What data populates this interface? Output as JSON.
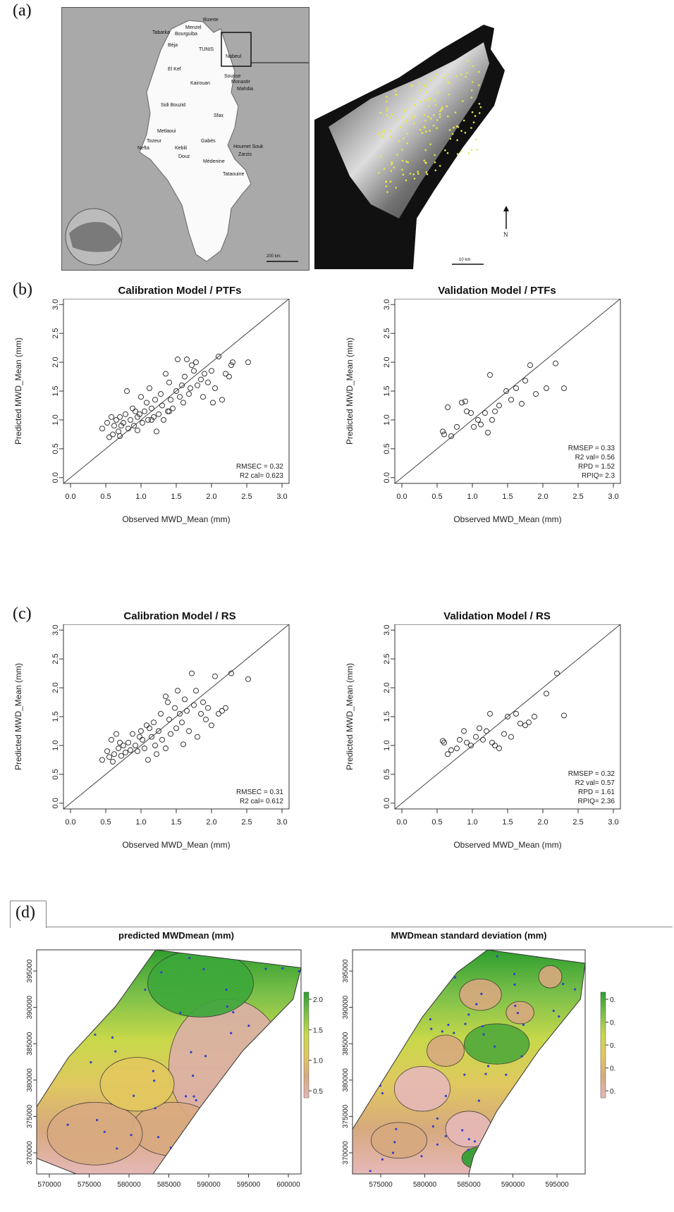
{
  "panels": {
    "a": {
      "letter": "(a)"
    },
    "b": {
      "letter": "(b)"
    },
    "c": {
      "letter": "(c)"
    },
    "d": {
      "letter": "(d)"
    }
  },
  "map": {
    "cities": [
      "Bizerte",
      "Menzel",
      "Tabarka",
      "Bourguiba",
      "Béja",
      "TUNIS",
      "Nabeul",
      "El Kef",
      "Kairouan",
      "Sousse",
      "Monastir",
      "Mahdia",
      "Sidi Bouzid",
      "Sfax",
      "Metlaoui",
      "Tozeur",
      "Nefta",
      "Kebili",
      "Gabès",
      "Houmet Souk",
      "Douz",
      "Zarzis",
      "Médenine",
      "Tataouine"
    ],
    "scale": "200 km"
  },
  "dem": {
    "north": "N",
    "scale": "10 km",
    "point_color": "#e8e84a"
  },
  "chart_data": [
    {
      "type": "scatter",
      "title": "Calibration Model / PTFs",
      "xlabel": "Observed  MWD_Mean  (mm)",
      "ylabel": "Predicted  MWD_Mean  (mm)",
      "xlim": [
        0,
        3
      ],
      "ylim": [
        0,
        3
      ],
      "xticks": [
        "0.0",
        "0.5",
        "1.0",
        "1.5",
        "2.0",
        "2.5",
        "3.0"
      ],
      "yticks": [
        "0.0",
        "0.5",
        "1.0",
        "1.5",
        "2.0",
        "2.5",
        "3.0"
      ],
      "stats": [
        "RMSEC = 0.32",
        "R2 cal= 0.623"
      ],
      "reference_line": "1:1",
      "points": [
        [
          0.45,
          0.85
        ],
        [
          0.52,
          0.95
        ],
        [
          0.55,
          0.7
        ],
        [
          0.58,
          1.05
        ],
        [
          0.6,
          0.75
        ],
        [
          0.62,
          0.9
        ],
        [
          0.65,
          1.0
        ],
        [
          0.68,
          0.8
        ],
        [
          0.7,
          1.05
        ],
        [
          0.72,
          0.9
        ],
        [
          0.75,
          0.95
        ],
        [
          0.78,
          1.1
        ],
        [
          0.8,
          1.5
        ],
        [
          0.82,
          0.85
        ],
        [
          0.85,
          1.0
        ],
        [
          0.88,
          1.2
        ],
        [
          0.9,
          0.9
        ],
        [
          0.92,
          1.15
        ],
        [
          0.95,
          1.05
        ],
        [
          0.98,
          1.1
        ],
        [
          1.0,
          1.4
        ],
        [
          1.02,
          0.95
        ],
        [
          1.05,
          1.15
        ],
        [
          1.08,
          1.3
        ],
        [
          1.1,
          1.0
        ],
        [
          1.12,
          1.55
        ],
        [
          1.15,
          1.2
        ],
        [
          1.18,
          1.05
        ],
        [
          1.2,
          1.35
        ],
        [
          1.22,
          0.8
        ],
        [
          1.25,
          1.1
        ],
        [
          1.28,
          1.45
        ],
        [
          1.3,
          1.25
        ],
        [
          1.32,
          1.0
        ],
        [
          1.35,
          1.8
        ],
        [
          1.38,
          1.15
        ],
        [
          1.4,
          1.65
        ],
        [
          1.42,
          1.35
        ],
        [
          1.45,
          1.2
        ],
        [
          1.5,
          1.5
        ],
        [
          1.52,
          2.05
        ],
        [
          1.55,
          1.4
        ],
        [
          1.58,
          1.6
        ],
        [
          1.6,
          1.3
        ],
        [
          1.62,
          1.75
        ],
        [
          1.65,
          2.05
        ],
        [
          1.68,
          1.45
        ],
        [
          1.7,
          1.55
        ],
        [
          1.72,
          1.95
        ],
        [
          1.75,
          1.85
        ],
        [
          1.78,
          2.0
        ],
        [
          1.8,
          1.6
        ],
        [
          1.85,
          1.7
        ],
        [
          1.88,
          1.4
        ],
        [
          1.9,
          1.8
        ],
        [
          1.95,
          1.65
        ],
        [
          2.0,
          1.85
        ],
        [
          2.02,
          1.3
        ],
        [
          2.05,
          1.55
        ],
        [
          2.1,
          2.1
        ],
        [
          2.15,
          1.35
        ],
        [
          2.2,
          1.8
        ],
        [
          2.25,
          1.75
        ],
        [
          2.28,
          1.95
        ],
        [
          2.3,
          2.0
        ],
        [
          2.52,
          2.0
        ],
        [
          1.4,
          1.15
        ],
        [
          1.15,
          1.0
        ],
        [
          0.95,
          0.82
        ],
        [
          0.7,
          0.72
        ]
      ]
    },
    {
      "type": "scatter",
      "title": "Validation Model / PTFs",
      "xlabel": "Observed  MWD_Mean  (mm)",
      "ylabel": "Predicted  MWD_Mean  (mm)",
      "xlim": [
        0,
        3
      ],
      "ylim": [
        0,
        3
      ],
      "xticks": [
        "0.0",
        "0.5",
        "1.0",
        "1.5",
        "2.0",
        "2.5",
        "3.0"
      ],
      "yticks": [
        "0.0",
        "0.5",
        "1.0",
        "1.5",
        "2.0",
        "2.5",
        "3.0"
      ],
      "stats": [
        "RMSEP = 0.33",
        "R2 val= 0.56",
        "RPD = 1.52",
        "RPIQ= 2.3"
      ],
      "reference_line": "1:1",
      "points": [
        [
          0.58,
          0.8
        ],
        [
          0.6,
          0.75
        ],
        [
          0.65,
          1.22
        ],
        [
          0.7,
          0.72
        ],
        [
          0.78,
          0.88
        ],
        [
          0.85,
          1.3
        ],
        [
          0.9,
          1.32
        ],
        [
          0.92,
          1.15
        ],
        [
          0.98,
          1.12
        ],
        [
          1.02,
          0.88
        ],
        [
          1.08,
          1.0
        ],
        [
          1.12,
          0.92
        ],
        [
          1.18,
          1.12
        ],
        [
          1.22,
          0.78
        ],
        [
          1.25,
          1.78
        ],
        [
          1.28,
          1.0
        ],
        [
          1.32,
          1.15
        ],
        [
          1.38,
          1.25
        ],
        [
          1.48,
          1.5
        ],
        [
          1.55,
          1.35
        ],
        [
          1.62,
          1.55
        ],
        [
          1.7,
          1.28
        ],
        [
          1.75,
          1.68
        ],
        [
          1.82,
          1.95
        ],
        [
          1.9,
          1.45
        ],
        [
          2.05,
          1.55
        ],
        [
          2.18,
          1.98
        ],
        [
          2.3,
          1.55
        ]
      ]
    },
    {
      "type": "scatter",
      "title": "Calibration Model / RS",
      "xlabel": "Observed   MWD_Mean  (mm)",
      "ylabel": "Predicted MWD_Mean  (mm)",
      "xlim": [
        0,
        3
      ],
      "ylim": [
        0,
        3
      ],
      "xticks": [
        "0.0",
        "0.5",
        "1.0",
        "1.5",
        "2.0",
        "2.5",
        "3.0"
      ],
      "yticks": [
        "0.0",
        "0.5",
        "1.0",
        "1.5",
        "2.0",
        "2.5",
        "3.0"
      ],
      "stats": [
        "RMSEC = 0.31",
        "R2 cal= 0.612"
      ],
      "reference_line": "1:1",
      "points": [
        [
          0.45,
          0.75
        ],
        [
          0.52,
          0.9
        ],
        [
          0.55,
          0.8
        ],
        [
          0.58,
          1.1
        ],
        [
          0.6,
          0.72
        ],
        [
          0.62,
          0.85
        ],
        [
          0.65,
          1.2
        ],
        [
          0.68,
          0.95
        ],
        [
          0.72,
          0.82
        ],
        [
          0.75,
          1.0
        ],
        [
          0.78,
          0.88
        ],
        [
          0.82,
          1.05
        ],
        [
          0.85,
          0.92
        ],
        [
          0.88,
          1.2
        ],
        [
          0.92,
          1.0
        ],
        [
          0.95,
          0.9
        ],
        [
          1.0,
          1.25
        ],
        [
          1.02,
          1.1
        ],
        [
          1.05,
          0.95
        ],
        [
          1.08,
          1.35
        ],
        [
          1.1,
          0.75
        ],
        [
          1.15,
          1.15
        ],
        [
          1.18,
          1.4
        ],
        [
          1.2,
          1.0
        ],
        [
          1.22,
          0.85
        ],
        [
          1.25,
          1.25
        ],
        [
          1.28,
          1.55
        ],
        [
          1.3,
          1.1
        ],
        [
          1.35,
          0.95
        ],
        [
          1.38,
          1.75
        ],
        [
          1.4,
          1.45
        ],
        [
          1.42,
          1.2
        ],
        [
          1.48,
          1.65
        ],
        [
          1.5,
          1.3
        ],
        [
          1.52,
          1.95
        ],
        [
          1.55,
          1.55
        ],
        [
          1.58,
          1.4
        ],
        [
          1.62,
          1.8
        ],
        [
          1.65,
          1.6
        ],
        [
          1.68,
          1.25
        ],
        [
          1.72,
          2.25
        ],
        [
          1.75,
          1.7
        ],
        [
          1.78,
          1.95
        ],
        [
          1.8,
          1.15
        ],
        [
          1.85,
          1.55
        ],
        [
          1.88,
          1.75
        ],
        [
          1.92,
          1.45
        ],
        [
          1.95,
          1.65
        ],
        [
          2.0,
          1.35
        ],
        [
          2.05,
          2.2
        ],
        [
          2.1,
          1.55
        ],
        [
          2.15,
          1.6
        ],
        [
          2.2,
          1.65
        ],
        [
          2.28,
          2.25
        ],
        [
          2.52,
          2.15
        ],
        [
          1.35,
          1.85
        ],
        [
          1.12,
          1.3
        ],
        [
          0.98,
          1.15
        ],
        [
          0.7,
          1.05
        ],
        [
          1.6,
          1.02
        ]
      ]
    },
    {
      "type": "scatter",
      "title": "Validation Model / RS",
      "xlabel": "Observed  MWD_Mean  (mm)",
      "ylabel": "Predicted  MWD_Mean  (mm)",
      "xlim": [
        0,
        3
      ],
      "ylim": [
        0,
        3
      ],
      "xticks": [
        "0.0",
        "0.5",
        "1.0",
        "1.5",
        "2.0",
        "2.5",
        "3.0"
      ],
      "yticks": [
        "0.0",
        "0.5",
        "1.0",
        "1.5",
        "2.0",
        "2.5",
        "3.0"
      ],
      "stats": [
        "RMSEP = 0.32",
        "R2 val= 0.57",
        "RPD = 1.61",
        "RPIQ= 2.36"
      ],
      "reference_line": "1:1",
      "points": [
        [
          0.58,
          1.08
        ],
        [
          0.6,
          1.05
        ],
        [
          0.65,
          0.85
        ],
        [
          0.7,
          0.92
        ],
        [
          0.78,
          0.95
        ],
        [
          0.82,
          1.1
        ],
        [
          0.88,
          1.25
        ],
        [
          0.92,
          1.05
        ],
        [
          0.98,
          1.0
        ],
        [
          1.05,
          1.15
        ],
        [
          1.1,
          1.3
        ],
        [
          1.15,
          1.1
        ],
        [
          1.2,
          1.25
        ],
        [
          1.25,
          1.55
        ],
        [
          1.28,
          1.05
        ],
        [
          1.32,
          1.0
        ],
        [
          1.38,
          0.95
        ],
        [
          1.45,
          1.2
        ],
        [
          1.5,
          1.5
        ],
        [
          1.55,
          1.15
        ],
        [
          1.62,
          1.55
        ],
        [
          1.68,
          1.38
        ],
        [
          1.75,
          1.35
        ],
        [
          1.8,
          1.4
        ],
        [
          1.88,
          1.5
        ],
        [
          2.05,
          1.9
        ],
        [
          2.2,
          2.25
        ],
        [
          2.3,
          1.52
        ]
      ]
    },
    {
      "type": "heatmap",
      "title": "predicted MWDmean (mm)",
      "xticks": [
        "570000",
        "575000",
        "580000",
        "585000",
        "590000",
        "595000",
        "600000"
      ],
      "yticks": [
        "370000",
        "375000",
        "380000",
        "385000",
        "390000",
        "395000"
      ],
      "colorbar_ticks": [
        "0.5",
        "1.0",
        "1.5",
        "2.0"
      ],
      "colormap": [
        "#e6b8b8",
        "#d7a97e",
        "#e0c860",
        "#c8d84a",
        "#7cc04a",
        "#2e9e2e"
      ]
    },
    {
      "type": "heatmap",
      "title": "MWDmean standard deviation (mm)",
      "xticks": [
        "575000",
        "580000",
        "585000",
        "590000",
        "595000"
      ],
      "yticks": [
        "370000",
        "375000",
        "380000",
        "385000",
        "390000",
        "395000"
      ],
      "colorbar_ticks": [
        "0.",
        "0.",
        "0.",
        "0.",
        "0."
      ],
      "colormap": [
        "#e6b8b8",
        "#d7a97e",
        "#e0c860",
        "#c8d84a",
        "#7cc04a",
        "#2e9e2e"
      ]
    }
  ]
}
